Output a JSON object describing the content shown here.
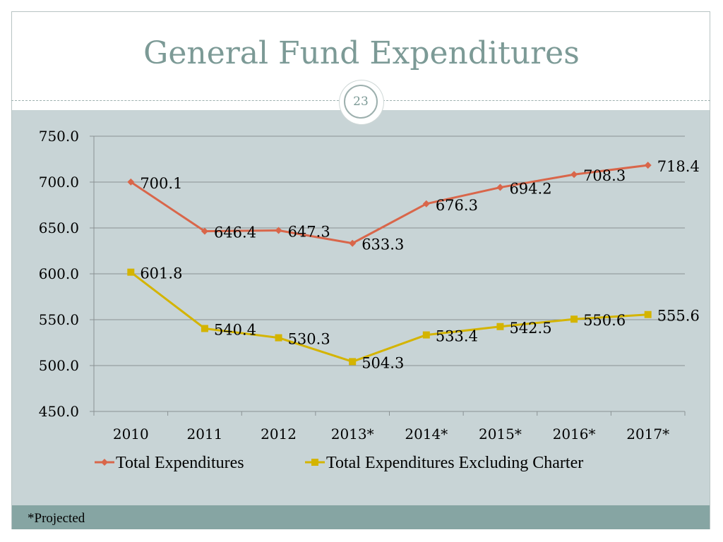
{
  "slide": {
    "title": "General Fund Expenditures",
    "page_number": "23",
    "footnote": "*Projected"
  },
  "colors": {
    "series_total": "#d9664a",
    "series_excl": "#d4b400",
    "title": "#7c9a96",
    "chart_bg": "#c8d4d6",
    "footer_bg": "#86a5a3"
  },
  "chart_data": {
    "type": "line",
    "title": "",
    "xlabel": "",
    "ylabel": "",
    "categories": [
      "2010",
      "2011",
      "2012",
      "2013*",
      "2014*",
      "2015*",
      "2016*",
      "2017*"
    ],
    "ylim": [
      450,
      750
    ],
    "yticks": [
      "450.0",
      "500.0",
      "550.0",
      "600.0",
      "650.0",
      "700.0",
      "750.0"
    ],
    "ytick_values": [
      450,
      500,
      550,
      600,
      650,
      700,
      750
    ],
    "grid": true,
    "legend_position": "bottom",
    "series": [
      {
        "name": "Total Expenditures",
        "marker": "diamond",
        "values": [
          700.1,
          646.4,
          647.3,
          633.3,
          676.3,
          694.2,
          708.3,
          718.4
        ],
        "labels": [
          "700.1",
          "646.4",
          "647.3",
          "633.3",
          "676.3",
          "694.2",
          "708.3",
          "718.4"
        ]
      },
      {
        "name": "Total Expenditures Excluding Charter",
        "marker": "square",
        "values": [
          601.8,
          540.4,
          530.3,
          504.3,
          533.4,
          542.5,
          550.6,
          555.6
        ],
        "labels": [
          "601.8",
          "540.4",
          "530.3",
          "504.3",
          "533.4",
          "542.5",
          "550.6",
          "555.6"
        ]
      }
    ]
  }
}
